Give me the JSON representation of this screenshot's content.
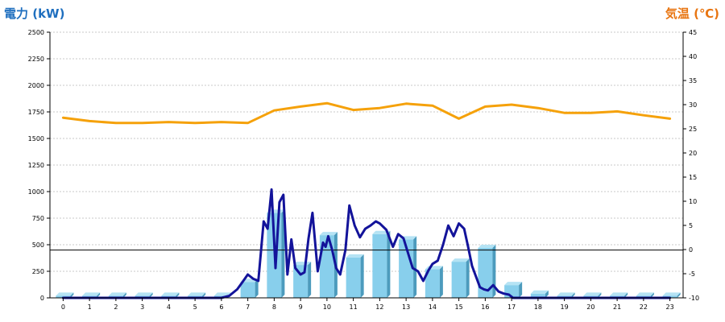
{
  "chart_data": {
    "type": "bar+line",
    "left_axis": {
      "title": "電力 (kW)",
      "ylim": [
        0,
        2500
      ],
      "ticks": [
        0,
        250,
        500,
        750,
        1000,
        1250,
        1500,
        1750,
        2000,
        2250,
        2500
      ],
      "color": "#1f6fbf"
    },
    "right_axis": {
      "title": "気温 (℃)",
      "ylim": [
        -10,
        45
      ],
      "ticks": [
        -10,
        -5,
        0,
        5,
        10,
        15,
        20,
        25,
        30,
        35,
        40,
        45
      ],
      "color": "#e87511"
    },
    "categories": [
      "0",
      "1",
      "2",
      "3",
      "4",
      "5",
      "6",
      "7",
      "8",
      "9",
      "10",
      "11",
      "12",
      "13",
      "14",
      "15",
      "16",
      "17",
      "18",
      "19",
      "20",
      "21",
      "22",
      "23"
    ],
    "grid": true,
    "reference_line": {
      "axis": "left",
      "value": 450
    },
    "series": [
      {
        "kind": "bar",
        "axis": "left",
        "color": "#88cfec",
        "values": [
          20,
          20,
          20,
          20,
          20,
          20,
          20,
          150,
          800,
          310,
          590,
          380,
          600,
          550,
          270,
          340,
          470,
          120,
          40,
          20,
          20,
          20,
          20,
          20
        ]
      },
      {
        "kind": "line",
        "axis": "left",
        "color": "#13139a",
        "x": [
          0,
          1,
          2,
          3,
          4,
          5,
          6,
          6.3,
          6.6,
          6.8,
          7.0,
          7.2,
          7.4,
          7.6,
          7.75,
          7.9,
          8.05,
          8.2,
          8.35,
          8.5,
          8.65,
          8.8,
          9.0,
          9.15,
          9.3,
          9.45,
          9.65,
          9.85,
          9.95,
          10.05,
          10.2,
          10.35,
          10.5,
          10.7,
          10.85,
          11.05,
          11.25,
          11.45,
          11.65,
          11.85,
          12.0,
          12.25,
          12.5,
          12.7,
          12.9,
          13.1,
          13.25,
          13.45,
          13.65,
          13.85,
          14.0,
          14.2,
          14.4,
          14.6,
          14.8,
          15.0,
          15.2,
          15.35,
          15.5,
          15.65,
          15.8,
          15.95,
          16.1,
          16.3,
          16.5,
          16.7,
          16.9,
          17.05,
          17.2,
          17.4,
          17.6,
          17.8,
          18,
          19,
          20,
          21,
          22,
          23
        ],
        "values": [
          0,
          0,
          0,
          0,
          0,
          0,
          0,
          20,
          80,
          150,
          220,
          180,
          160,
          720,
          650,
          1020,
          280,
          900,
          970,
          220,
          550,
          280,
          220,
          240,
          560,
          800,
          250,
          520,
          480,
          580,
          450,
          280,
          220,
          450,
          870,
          680,
          570,
          650,
          680,
          720,
          700,
          640,
          480,
          600,
          560,
          400,
          280,
          250,
          160,
          260,
          320,
          350,
          500,
          680,
          580,
          700,
          650,
          480,
          300,
          200,
          100,
          80,
          70,
          120,
          60,
          40,
          30,
          0,
          0,
          0,
          0,
          0,
          0,
          0,
          0,
          0,
          0,
          0
        ]
      },
      {
        "kind": "line",
        "axis": "right",
        "color": "#f5a10a",
        "values": [
          27.3,
          26.6,
          26.2,
          26.2,
          26.4,
          26.2,
          26.4,
          26.2,
          28.8,
          29.6,
          30.3,
          28.9,
          29.3,
          30.2,
          29.8,
          27.1,
          29.6,
          30.0,
          29.3,
          28.3,
          28.3,
          28.6,
          27.8,
          27.1
        ]
      }
    ]
  }
}
